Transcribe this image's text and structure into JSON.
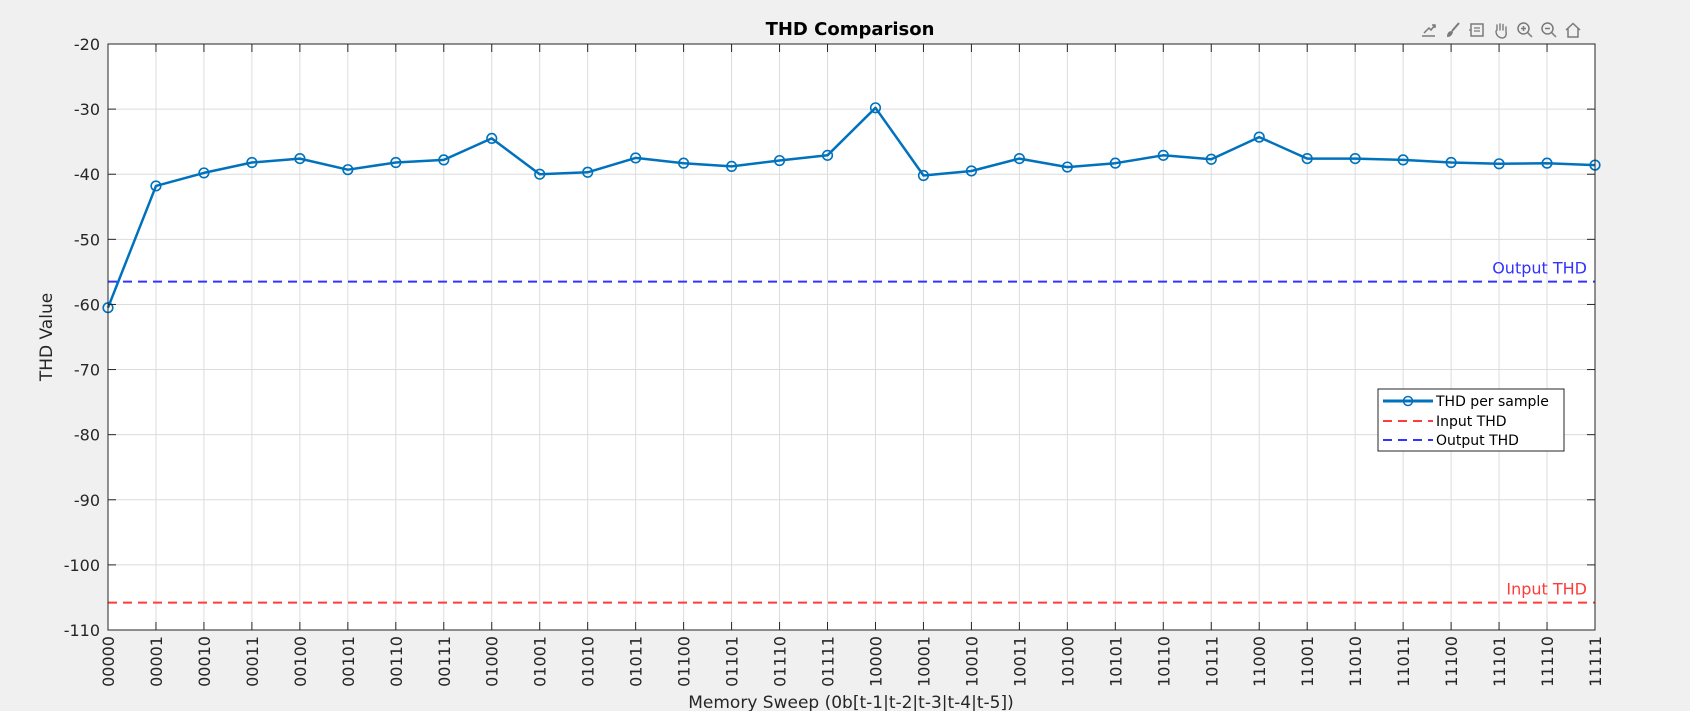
{
  "toolbar": {
    "icons": [
      "export-icon",
      "brush-icon",
      "datatip-icon",
      "pan-hand-icon",
      "zoom-in-icon",
      "zoom-out-icon",
      "home-icon"
    ]
  },
  "colors": {
    "background": "#f0f0f0",
    "axes_bg": "#ffffff",
    "thd_line": "#0072bd",
    "input_thd": "#ff3b3b",
    "output_thd": "#3333ff",
    "grid": "#dcdcdc"
  },
  "chart_data": {
    "type": "line",
    "title": "THD Comparison",
    "xlabel": "Memory Sweep (0b[t-1|t-2|t-3|t-4|t-5])",
    "ylabel": "THD Value",
    "ylim": [
      -110,
      -20
    ],
    "yticks": [
      "-20",
      "-30",
      "-40",
      "-50",
      "-60",
      "-70",
      "-80",
      "-90",
      "-100",
      "-110"
    ],
    "grid": true,
    "legend_position": "right",
    "categories": [
      "00000",
      "00001",
      "00010",
      "00011",
      "00100",
      "00101",
      "00110",
      "00111",
      "01000",
      "01001",
      "01010",
      "01011",
      "01100",
      "01101",
      "01110",
      "01111",
      "10000",
      "10001",
      "10010",
      "10011",
      "10100",
      "10101",
      "10110",
      "10111",
      "11000",
      "11001",
      "11010",
      "11011",
      "11100",
      "11101",
      "11110",
      "11111"
    ],
    "series": [
      {
        "name": "THD per sample",
        "style": "solid-marker",
        "values": [
          -60.5,
          -41.8,
          -39.8,
          -38.2,
          -37.6,
          -39.3,
          -38.2,
          -37.8,
          -34.5,
          -40.0,
          -39.7,
          -37.5,
          -38.3,
          -38.8,
          -37.9,
          -37.1,
          -29.8,
          -40.2,
          -39.5,
          -37.6,
          -38.9,
          -38.3,
          -37.1,
          -37.7,
          -34.3,
          -37.6,
          -37.6,
          -37.8,
          -38.2,
          -38.4,
          -38.3,
          -38.6
        ]
      },
      {
        "name": "Input THD",
        "style": "dashed",
        "value": -105.8,
        "annotation": "Input THD"
      },
      {
        "name": "Output THD",
        "style": "dashed",
        "value": -56.5,
        "annotation": "Output THD"
      }
    ]
  }
}
